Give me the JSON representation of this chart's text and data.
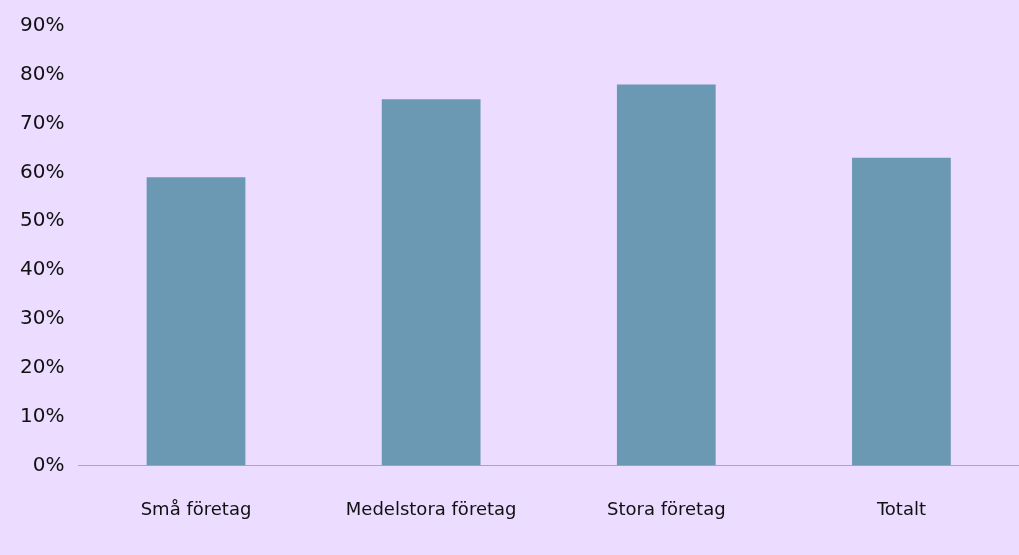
{
  "chart_data": {
    "type": "bar",
    "categories": [
      "Små företag",
      "Medelstora företag",
      "Stora företag",
      "Totalt"
    ],
    "values": [
      59,
      75,
      78,
      63
    ],
    "color": "#6b98b3",
    "ylim": [
      0,
      90
    ],
    "yticks": [
      {
        "value": 0,
        "label": "0%"
      },
      {
        "value": 10,
        "label": "10%"
      },
      {
        "value": 20,
        "label": "20%"
      },
      {
        "value": 30,
        "label": "30%"
      },
      {
        "value": 40,
        "label": "40%"
      },
      {
        "value": 50,
        "label": "50%"
      },
      {
        "value": 60,
        "label": "60%"
      },
      {
        "value": 70,
        "label": "70%"
      },
      {
        "value": 80,
        "label": "80%"
      },
      {
        "value": 90,
        "label": "90%"
      }
    ],
    "grid": false,
    "legend": false
  }
}
